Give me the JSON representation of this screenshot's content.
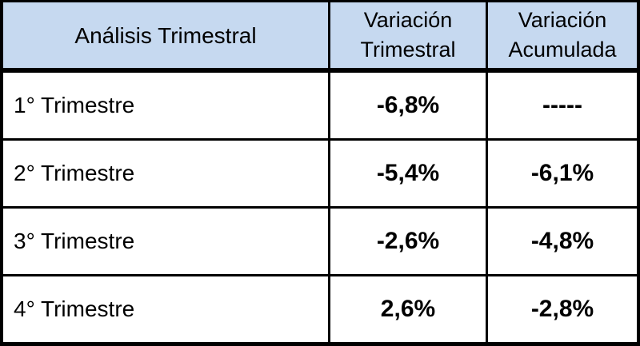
{
  "colors": {
    "header_bg": "#c6d9f0",
    "border": "#000000",
    "text": "#000000",
    "row_bg": "#ffffff"
  },
  "table": {
    "header": {
      "col1": "Análisis Trimestral",
      "col2_line1": "Variación",
      "col2_line2": "Trimestral",
      "col3_line1": "Variación",
      "col3_line2": "Acumulada"
    },
    "rows": [
      {
        "label": "1° Trimestre",
        "quarterly": "-6,8%",
        "accumulated": "-----"
      },
      {
        "label": "2° Trimestre",
        "quarterly": "-5,4%",
        "accumulated": "-6,1%"
      },
      {
        "label": "3° Trimestre",
        "quarterly": "-2,6%",
        "accumulated": "-4,8%"
      },
      {
        "label": "4° Trimestre",
        "quarterly": "2,6%",
        "accumulated": "-2,8%"
      }
    ]
  },
  "chart_data": {
    "type": "table",
    "title": "Análisis Trimestral",
    "columns": [
      "Análisis Trimestral",
      "Variación Trimestral",
      "Variación Acumulada"
    ],
    "rows": [
      [
        "1° Trimestre",
        "-6,8%",
        "-----"
      ],
      [
        "2° Trimestre",
        "-5,4%",
        "-6,1%"
      ],
      [
        "3° Trimestre",
        "-2,6%",
        "-4,8%"
      ],
      [
        "4° Trimestre",
        "2,6%",
        "-2,8%"
      ]
    ],
    "series": [
      {
        "name": "Variación Trimestral (%)",
        "values": [
          -6.8,
          -5.4,
          -2.6,
          2.6
        ]
      },
      {
        "name": "Variación Acumulada (%)",
        "values": [
          null,
          -6.1,
          -4.8,
          -2.8
        ]
      }
    ],
    "categories": [
      "1° Trimestre",
      "2° Trimestre",
      "3° Trimestre",
      "4° Trimestre"
    ],
    "layout_hints": {
      "header_background": "#c6d9f0",
      "value_cells_bold": true,
      "grid": "on"
    }
  }
}
